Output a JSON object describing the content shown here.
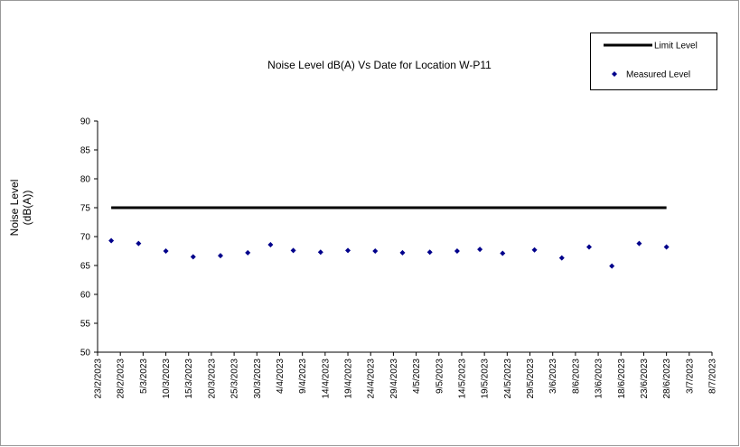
{
  "chart_data": {
    "type": "line",
    "title": "Noise Level dB(A) Vs Date for Location W-P11",
    "ylabel": [
      "Noise Level",
      "(dB(A))"
    ],
    "xlim": [
      "2023-02-23",
      "2023-07-08"
    ],
    "xticks": [
      {
        "value": "2023-02-23",
        "label": "23/2/2023"
      },
      {
        "value": "2023-02-28",
        "label": "28/2/2023"
      },
      {
        "value": "2023-03-05",
        "label": "5/3/2023"
      },
      {
        "value": "2023-03-10",
        "label": "10/3/2023"
      },
      {
        "value": "2023-03-15",
        "label": "15/3/2023"
      },
      {
        "value": "2023-03-20",
        "label": "20/3/2023"
      },
      {
        "value": "2023-03-25",
        "label": "25/3/2023"
      },
      {
        "value": "2023-03-30",
        "label": "30/3/2023"
      },
      {
        "value": "2023-04-04",
        "label": "4/4/2023"
      },
      {
        "value": "2023-04-09",
        "label": "9/4/2023"
      },
      {
        "value": "2023-04-14",
        "label": "14/4/2023"
      },
      {
        "value": "2023-04-19",
        "label": "19/4/2023"
      },
      {
        "value": "2023-04-24",
        "label": "24/4/2023"
      },
      {
        "value": "2023-04-29",
        "label": "29/4/2023"
      },
      {
        "value": "2023-05-04",
        "label": "4/5/2023"
      },
      {
        "value": "2023-05-09",
        "label": "9/5/2023"
      },
      {
        "value": "2023-05-14",
        "label": "14/5/2023"
      },
      {
        "value": "2023-05-19",
        "label": "19/5/2023"
      },
      {
        "value": "2023-05-24",
        "label": "24/5/2023"
      },
      {
        "value": "2023-05-29",
        "label": "29/5/2023"
      },
      {
        "value": "2023-06-03",
        "label": "3/6/2023"
      },
      {
        "value": "2023-06-08",
        "label": "8/6/2023"
      },
      {
        "value": "2023-06-13",
        "label": "13/6/2023"
      },
      {
        "value": "2023-06-18",
        "label": "18/6/2023"
      },
      {
        "value": "2023-06-23",
        "label": "23/6/2023"
      },
      {
        "value": "2023-06-28",
        "label": "28/6/2023"
      },
      {
        "value": "2023-07-03",
        "label": "3/7/2023"
      },
      {
        "value": "2023-07-08",
        "label": "8/7/2023"
      }
    ],
    "ylim": [
      50,
      90
    ],
    "yticks": [
      50,
      55,
      60,
      65,
      70,
      75,
      80,
      85,
      90
    ],
    "grid": false,
    "legend": "top-right",
    "series": [
      {
        "name": "Limit Level",
        "type": "line",
        "color": "#000000",
        "x": [
          "2023-02-26",
          "2023-06-28"
        ],
        "values": [
          75,
          75
        ]
      },
      {
        "name": "Measured Level",
        "type": "scatter",
        "color": "#00008b",
        "x": [
          "2023-02-26",
          "2023-03-04",
          "2023-03-10",
          "2023-03-16",
          "2023-03-22",
          "2023-03-28",
          "2023-04-02",
          "2023-04-07",
          "2023-04-13",
          "2023-04-19",
          "2023-04-25",
          "2023-05-01",
          "2023-05-07",
          "2023-05-13",
          "2023-05-18",
          "2023-05-23",
          "2023-05-30",
          "2023-06-05",
          "2023-06-11",
          "2023-06-16",
          "2023-06-22",
          "2023-06-28"
        ],
        "values": [
          69.3,
          68.8,
          67.5,
          66.5,
          66.7,
          67.2,
          68.6,
          67.6,
          67.3,
          67.6,
          67.5,
          67.2,
          67.3,
          67.5,
          67.8,
          67.1,
          67.7,
          66.3,
          68.2,
          64.9,
          68.8,
          68.2
        ]
      }
    ]
  }
}
